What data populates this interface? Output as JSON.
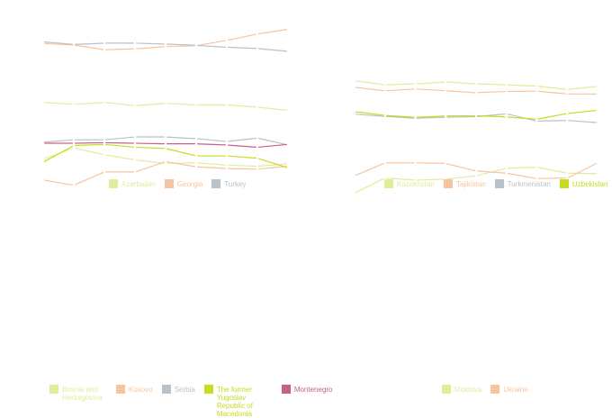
{
  "colors": {
    "lime_pale": "#e2ec9a",
    "peach": "#f7c49e",
    "grey": "#b9c1c9",
    "lime": "#c7dc1c",
    "rose": "#c9608a"
  },
  "chart_data": [
    {
      "type": "line",
      "x": [
        1,
        2,
        3,
        4,
        5,
        6,
        7,
        8,
        9
      ],
      "ylim": [
        0,
        40
      ],
      "legend": "bottom",
      "grid": false,
      "series": [
        {
          "name": "Azerbaijan",
          "color": "#e2ec9a",
          "values": [
            11.8,
            11.2,
            11.8,
            10.8,
            11.5,
            11.0,
            11.0,
            10.3,
            9.3
          ]
        },
        {
          "name": "Georgia",
          "color": "#f7c49e",
          "values": [
            30.5,
            30.0,
            28.5,
            28.8,
            29.5,
            29.8,
            31.5,
            33.5,
            35.0
          ]
        },
        {
          "name": "Turkey",
          "color": "#b9c1c9",
          "values": [
            31.0,
            30.2,
            30.6,
            30.6,
            30.3,
            29.9,
            29.3,
            28.9,
            28.0
          ]
        }
      ]
    },
    {
      "type": "line",
      "x": [
        1,
        2,
        3,
        4,
        5,
        6,
        7,
        8,
        9
      ],
      "ylim": [
        0,
        40
      ],
      "legend": "bottom",
      "grid": false,
      "series": [
        {
          "name": "Kazakhstan",
          "color": "#e2ec9a",
          "values": [
            34.4,
            33.1,
            33.4,
            34.0,
            33.4,
            33.1,
            32.7,
            31.6,
            32.6
          ]
        },
        {
          "name": "Tajikistan",
          "color": "#f7c49e",
          "values": [
            32.3,
            31.2,
            31.8,
            31.2,
            30.6,
            31.0,
            31.1,
            30.2,
            30.2
          ]
        },
        {
          "name": "Turkmenistan",
          "color": "#b9c1c9",
          "values": [
            23.8,
            23.1,
            22.5,
            22.8,
            23.0,
            23.9,
            21.6,
            21.8,
            21.1
          ]
        },
        {
          "name": "Uzbekistan",
          "color": "#c7dc1c",
          "values": [
            24.6,
            23.4,
            22.8,
            23.2,
            23.3,
            22.9,
            22.2,
            24.0,
            25.0
          ]
        }
      ]
    },
    {
      "type": "line",
      "x": [
        1,
        2,
        3,
        4,
        5,
        6,
        7,
        8,
        9
      ],
      "ylim": [
        0,
        40
      ],
      "legend": "bottom",
      "grid": false,
      "series": [
        {
          "name": "Bosnia and Herzegovina",
          "color": "#e2ec9a",
          "values": [
            35.0,
            37.0,
            35.8,
            34.9,
            34.3,
            34.4,
            34.0,
            33.8,
            34.2
          ]
        },
        {
          "name": "Kosovo",
          "color": "#f7c49e",
          "values": [
            31.4,
            30.5,
            32.8,
            32.8,
            34.6,
            33.7,
            33.4,
            33.3,
            33.8
          ]
        },
        {
          "name": "Serbia",
          "color": "#b9c1c9",
          "values": [
            38.0,
            38.4,
            38.4,
            38.9,
            38.9,
            38.6,
            38.1,
            38.7,
            37.5
          ]
        },
        {
          "name": "The former Yugoslav Republic of Macedonia",
          "color": "#c7dc1c",
          "values": [
            34.5,
            37.4,
            37.6,
            37.1,
            36.9,
            35.6,
            35.6,
            35.2,
            33.5
          ]
        },
        {
          "name": "Montenegro",
          "color": "#c9608a",
          "values": [
            37.8,
            37.8,
            37.9,
            37.8,
            37.7,
            37.7,
            37.5,
            37.1,
            37.6
          ]
        }
      ]
    },
    {
      "type": "line",
      "x": [
        1,
        2,
        3,
        4,
        5,
        6,
        7,
        8,
        9
      ],
      "ylim": [
        0,
        40
      ],
      "legend": "bottom",
      "grid": false,
      "series": [
        {
          "name": "Moldova",
          "color": "#e2ec9a",
          "values": [
            30.1,
            32.9,
            32.5,
            32.7,
            33.3,
            34.7,
            34.9,
            33.8,
            33.7
          ]
        },
        {
          "name": "Ukraine",
          "color": "#f7c49e",
          "values": [
            33.3,
            35.7,
            35.7,
            35.6,
            34.2,
            33.8,
            32.8,
            32.9,
            35.7
          ]
        }
      ]
    }
  ]
}
